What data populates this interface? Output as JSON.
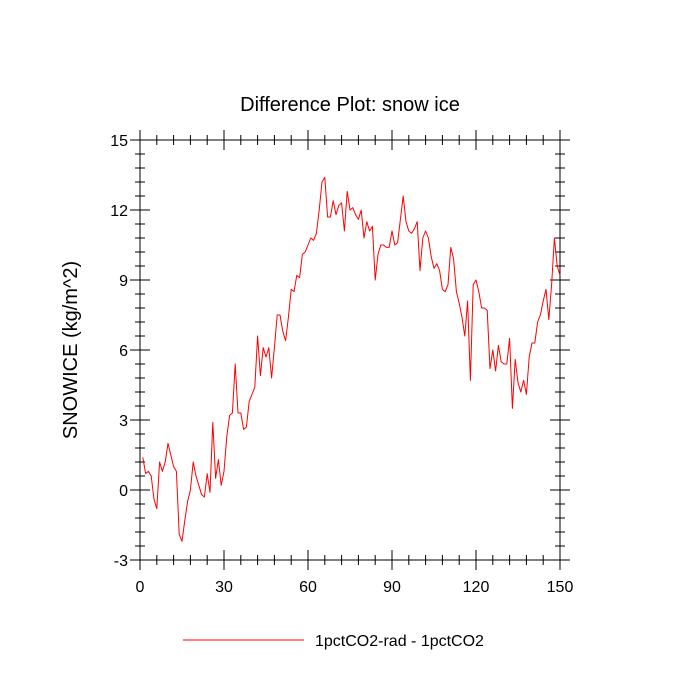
{
  "chart_data": {
    "type": "line",
    "title": "Difference Plot: snow ice",
    "xlabel": "",
    "ylabel": "SNOWICE  (kg/m^2)",
    "xlim": [
      0,
      150
    ],
    "ylim": [
      -3,
      15
    ],
    "xticks": [
      0,
      30,
      60,
      90,
      120,
      150
    ],
    "yticks": [
      -3,
      0,
      3,
      6,
      9,
      12,
      15
    ],
    "grid": false,
    "legend_position": "bottom",
    "series_color": "#ff0000",
    "series": [
      {
        "name": "1pctCO2-rad - 1pctCO2",
        "x": [
          1,
          2,
          3,
          4,
          5,
          6,
          7,
          8,
          9,
          10,
          11,
          12,
          13,
          14,
          15,
          16,
          17,
          18,
          19,
          20,
          21,
          22,
          23,
          24,
          25,
          26,
          27,
          28,
          29,
          30,
          31,
          32,
          33,
          34,
          35,
          36,
          37,
          38,
          39,
          40,
          41,
          42,
          43,
          44,
          45,
          46,
          47,
          48,
          49,
          50,
          51,
          52,
          53,
          54,
          55,
          56,
          57,
          58,
          59,
          60,
          61,
          62,
          63,
          64,
          65,
          66,
          67,
          68,
          69,
          70,
          71,
          72,
          73,
          74,
          75,
          76,
          77,
          78,
          79,
          80,
          81,
          82,
          83,
          84,
          85,
          86,
          87,
          88,
          89,
          90,
          91,
          92,
          93,
          94,
          95,
          96,
          97,
          98,
          99,
          100,
          101,
          102,
          103,
          104,
          105,
          106,
          107,
          108,
          109,
          110,
          111,
          112,
          113,
          114,
          115,
          116,
          117,
          118,
          119,
          120,
          121,
          122,
          123,
          124,
          125,
          126,
          127,
          128,
          129,
          130,
          131,
          132,
          133,
          134,
          135,
          136,
          137,
          138,
          139,
          140,
          141,
          142,
          143,
          144,
          145,
          146,
          147,
          148,
          149,
          150
        ],
        "y": [
          1.4,
          0.7,
          0.8,
          0.6,
          -0.4,
          -0.8,
          1.2,
          0.8,
          1.2,
          2.0,
          1.5,
          1.0,
          0.8,
          -1.9,
          -2.2,
          -1.3,
          -0.5,
          0.0,
          1.2,
          0.6,
          0.2,
          -0.2,
          -0.3,
          0.7,
          -0.1,
          2.9,
          0.5,
          1.3,
          0.2,
          0.8,
          2.3,
          3.2,
          3.3,
          5.4,
          3.3,
          3.3,
          2.6,
          2.7,
          3.8,
          4.1,
          4.4,
          6.6,
          4.9,
          6.1,
          5.7,
          6.1,
          4.8,
          6.1,
          7.5,
          7.5,
          6.8,
          6.4,
          7.4,
          8.6,
          8.5,
          9.2,
          9.1,
          10.1,
          10.2,
          10.5,
          10.8,
          10.7,
          11.0,
          12.0,
          13.2,
          13.4,
          11.7,
          11.7,
          12.4,
          11.8,
          12.2,
          12.3,
          11.1,
          12.8,
          12.0,
          12.1,
          11.8,
          11.6,
          12.0,
          10.8,
          11.5,
          11.1,
          11.3,
          9.0,
          10.1,
          10.5,
          10.5,
          10.4,
          10.4,
          11.1,
          10.5,
          10.6,
          11.6,
          12.6,
          11.5,
          11.1,
          11.0,
          11.2,
          11.5,
          9.4,
          10.8,
          11.1,
          10.8,
          10.0,
          9.5,
          9.7,
          9.4,
          8.6,
          8.5,
          8.8,
          10.4,
          9.9,
          8.5,
          8.0,
          7.4,
          6.6,
          8.1,
          4.7,
          8.8,
          9.0,
          8.5,
          7.8,
          7.8,
          7.7,
          5.2,
          6.0,
          5.1,
          6.2,
          5.5,
          5.4,
          5.4,
          6.5,
          3.5,
          5.6,
          4.6,
          4.2,
          4.7,
          4.1,
          5.7,
          6.3,
          6.3,
          7.2,
          7.5,
          8.1,
          8.6,
          7.3,
          8.8,
          10.8,
          9.6,
          9.2
        ]
      }
    ]
  }
}
